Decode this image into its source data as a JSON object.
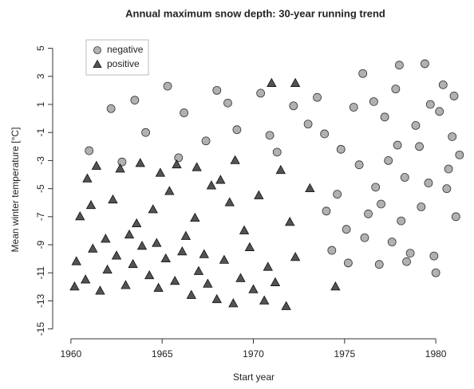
{
  "chart_data": {
    "type": "scatter",
    "title": "Annual maximum snow depth: 30-year running trend",
    "x_label": "Start year",
    "y_label": "Mean winter temperature [°C]",
    "xlim": [
      1959,
      1981.7
    ],
    "ylim": [
      -15.7,
      5.6
    ],
    "xticks": [
      1960,
      1965,
      1970,
      1975,
      1980
    ],
    "yticks": [
      5,
      3,
      1,
      -1,
      -3,
      -5,
      -7,
      -9,
      -11,
      -13,
      -15
    ],
    "legend": "top-left",
    "series": [
      {
        "name": "negative",
        "color": "#a8a8a8",
        "marker": "circle",
        "x": [
          1975.2,
          1976.1,
          1977.0,
          1978.3,
          1979.1,
          1980.2,
          1978.0,
          1979.4,
          1976.6,
          1977.8,
          1980.9,
          1981.1,
          1975.8,
          1974.6,
          1973.9,
          1976.9,
          1978.6,
          1979.9,
          1980.6,
          1977.4,
          1978.9,
          1976.3,
          1975.1,
          1979.6,
          1980.4,
          1977.2,
          1981.3,
          1974.3,
          1978.1,
          1976.0,
          1961.0,
          1962.2,
          1963.5,
          1964.1,
          1965.3,
          1966.2,
          1967.4,
          1968.6,
          1969.1,
          1970.4,
          1971.3,
          1972.2,
          1973.0,
          1962.8,
          1965.9,
          1968.0,
          1970.9,
          1973.5,
          1974.8,
          1975.5,
          1977.6,
          1979.2,
          1980.0,
          1978.4,
          1981.0,
          1976.7,
          1979.7,
          1974.0,
          1977.9,
          1980.7
        ],
        "values": [
          -10.3,
          -8.5,
          -6.1,
          -4.2,
          -2.0,
          0.5,
          3.8,
          3.9,
          1.2,
          2.1,
          -1.3,
          -7.0,
          -3.3,
          -5.4,
          -1.1,
          -10.4,
          -9.6,
          -9.8,
          -5.0,
          -3.0,
          -0.5,
          -6.8,
          -7.9,
          -4.6,
          2.4,
          0.1,
          -2.6,
          -9.4,
          -7.3,
          3.2,
          -2.3,
          0.7,
          1.3,
          -1.0,
          2.3,
          0.4,
          -1.6,
          1.1,
          -0.8,
          1.8,
          -2.4,
          0.9,
          -0.4,
          -3.1,
          -2.8,
          2.0,
          -1.2,
          1.5,
          -2.2,
          0.8,
          -8.8,
          -6.3,
          -11.0,
          -10.2,
          1.6,
          -4.9,
          1.0,
          -6.6,
          -1.9,
          -3.6
        ]
      },
      {
        "name": "positive",
        "color": "#404040",
        "marker": "triangle",
        "x": [
          1960.3,
          1960.8,
          1961.2,
          1961.6,
          1962.0,
          1962.5,
          1963.0,
          1963.4,
          1963.9,
          1964.3,
          1964.8,
          1965.2,
          1965.7,
          1966.1,
          1966.6,
          1967.0,
          1967.5,
          1968.0,
          1968.4,
          1968.9,
          1969.3,
          1970.0,
          1970.6,
          1971.2,
          1971.8,
          1972.3,
          1960.5,
          1961.1,
          1962.3,
          1963.6,
          1964.5,
          1965.4,
          1966.8,
          1967.7,
          1968.7,
          1969.5,
          1970.3,
          1961.4,
          1962.7,
          1963.8,
          1964.9,
          1965.8,
          1966.9,
          1968.2,
          1969.0,
          1960.9,
          1961.9,
          1963.2,
          1964.7,
          1966.3,
          1967.3,
          1969.8,
          1971.0,
          1972.3,
          1971.5,
          1973.1,
          1972.0,
          1970.8,
          1974.5,
          1960.2
        ],
        "values": [
          -10.2,
          -11.5,
          -9.3,
          -12.3,
          -10.8,
          -9.8,
          -11.9,
          -10.4,
          -9.1,
          -11.2,
          -12.1,
          -10.0,
          -11.6,
          -9.5,
          -12.6,
          -10.9,
          -11.8,
          -12.9,
          -10.1,
          -13.2,
          -11.4,
          -12.2,
          -13.0,
          -11.7,
          -13.4,
          -9.9,
          -7.0,
          -6.2,
          -5.8,
          -7.5,
          -6.5,
          -5.2,
          -7.1,
          -4.8,
          -6.0,
          -8.0,
          -5.5,
          -3.4,
          -3.6,
          -3.2,
          -3.9,
          -3.3,
          -3.5,
          -4.4,
          -3.0,
          -4.3,
          -8.6,
          -8.3,
          -8.9,
          -8.4,
          -9.7,
          -9.2,
          2.5,
          2.5,
          -3.7,
          -5.0,
          -7.4,
          -10.6,
          -12.0,
          -12.0
        ]
      }
    ]
  }
}
